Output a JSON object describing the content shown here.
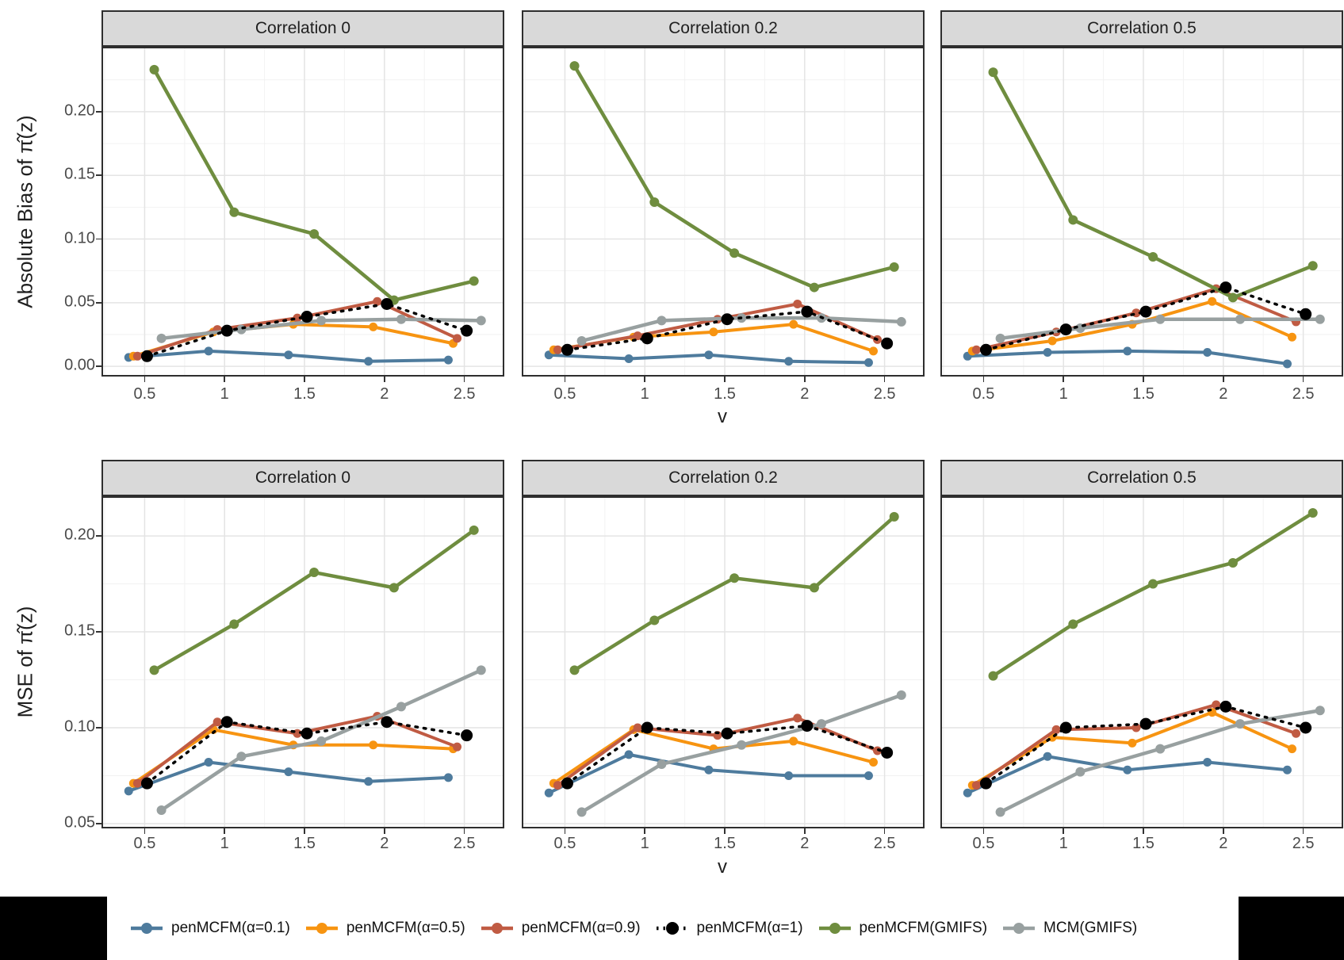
{
  "styles": {
    "background": "#ffffff",
    "strip_fill": "#d9d9d9",
    "panel_border": "#2e2e2e",
    "grid_major": "#e4e4e4",
    "grid_minor": "#f2f2f2",
    "axis_text": "#4a4a4a",
    "tick_mark": "#333333",
    "mask": "#000000"
  },
  "series_meta": [
    {
      "id": "alpha01",
      "label": "penMCFM(α=0.1)",
      "color": "#4e7b9d",
      "x_offset": -0.1,
      "dash": "",
      "line_width": 4,
      "point_r": 5.5
    },
    {
      "id": "alpha05",
      "label": "penMCFM(α=0.5)",
      "color": "#f79411",
      "x_offset": -0.07,
      "dash": "",
      "line_width": 4,
      "point_r": 5.5
    },
    {
      "id": "alpha09",
      "label": "penMCFM(α=0.9)",
      "color": "#c05b43",
      "x_offset": -0.045,
      "dash": "",
      "line_width": 4,
      "point_r": 5.5
    },
    {
      "id": "alpha1",
      "label": "penMCFM(α=1)",
      "color": "#000000",
      "x_offset": 0.015,
      "dash": "2.5 8",
      "line_width": 3.5,
      "point_r": 7.5
    },
    {
      "id": "gmifs",
      "label": "penMCFM(GMIFS)",
      "color": "#6f8d3f",
      "x_offset": 0.06,
      "dash": "",
      "line_width": 4.5,
      "point_r": 6
    },
    {
      "id": "mcm",
      "label": "MCM(GMIFS)",
      "color": "#98a0a0",
      "x_offset": 0.105,
      "dash": "",
      "line_width": 4.5,
      "point_r": 6
    }
  ],
  "chart_data": {
    "type": "line",
    "x": [
      0.5,
      1,
      1.5,
      2,
      2.5
    ],
    "xlabel": "v",
    "x_tick_labels": [
      "0.5",
      "1",
      "1.5",
      "2",
      "2.5"
    ],
    "x_domain": [
      0.23,
      2.75
    ],
    "grid": true,
    "legend_position": "bottom",
    "facet_columns": [
      "Correlation 0",
      "Correlation 0.2",
      "Correlation 0.5"
    ],
    "rows": [
      {
        "ylabel": "Absolute Bias of π̂(z)",
        "ylim": [
          -0.008,
          0.251
        ],
        "y_ticks": [
          0.0,
          0.05,
          0.1,
          0.15,
          0.2
        ],
        "y_tick_labels": [
          "0.00",
          "0.05",
          "0.10",
          "0.15",
          "0.20"
        ],
        "panels": [
          {
            "facet": "Correlation 0",
            "series": {
              "alpha01": [
                0.007,
                0.012,
                0.009,
                0.004,
                0.005
              ],
              "alpha05": [
                0.008,
                0.027,
                0.033,
                0.031,
                0.018
              ],
              "alpha09": [
                0.008,
                0.029,
                0.038,
                0.051,
                0.022
              ],
              "alpha1": [
                0.008,
                0.028,
                0.039,
                0.049,
                0.028
              ],
              "gmifs": [
                0.233,
                0.121,
                0.104,
                0.052,
                0.067
              ],
              "mcm": [
                0.022,
                0.029,
                0.036,
                0.037,
                0.036
              ]
            }
          },
          {
            "facet": "Correlation 0.2",
            "series": {
              "alpha01": [
                0.009,
                0.006,
                0.009,
                0.004,
                0.003
              ],
              "alpha05": [
                0.013,
                0.023,
                0.027,
                0.033,
                0.012
              ],
              "alpha09": [
                0.013,
                0.024,
                0.037,
                0.049,
                0.021
              ],
              "alpha1": [
                0.013,
                0.022,
                0.037,
                0.043,
                0.018
              ],
              "gmifs": [
                0.236,
                0.129,
                0.089,
                0.062,
                0.078
              ],
              "mcm": [
                0.02,
                0.036,
                0.038,
                0.038,
                0.035
              ]
            }
          },
          {
            "facet": "Correlation 0.5",
            "series": {
              "alpha01": [
                0.008,
                0.011,
                0.012,
                0.011,
                0.002
              ],
              "alpha05": [
                0.012,
                0.02,
                0.033,
                0.051,
                0.023
              ],
              "alpha09": [
                0.013,
                0.027,
                0.042,
                0.061,
                0.035
              ],
              "alpha1": [
                0.013,
                0.029,
                0.043,
                0.062,
                0.041
              ],
              "gmifs": [
                0.231,
                0.115,
                0.086,
                0.054,
                0.079
              ],
              "mcm": [
                0.022,
                0.03,
                0.037,
                0.037,
                0.037
              ]
            }
          }
        ]
      },
      {
        "ylabel": "MSE of π̂(z)",
        "ylim": [
          0.0475,
          0.2207
        ],
        "y_ticks": [
          0.05,
          0.1,
          0.15,
          0.2
        ],
        "y_tick_labels": [
          "0.05",
          "0.10",
          "0.15",
          "0.20"
        ],
        "panels": [
          {
            "facet": "Correlation 0",
            "series": {
              "alpha01": [
                0.067,
                0.082,
                0.077,
                0.072,
                0.074
              ],
              "alpha05": [
                0.071,
                0.099,
                0.091,
                0.091,
                0.089
              ],
              "alpha09": [
                0.071,
                0.103,
                0.097,
                0.106,
                0.09
              ],
              "alpha1": [
                0.071,
                0.103,
                0.097,
                0.103,
                0.096
              ],
              "gmifs": [
                0.13,
                0.154,
                0.181,
                0.173,
                0.203
              ],
              "mcm": [
                0.057,
                0.085,
                0.093,
                0.111,
                0.13
              ]
            }
          },
          {
            "facet": "Correlation 0.2",
            "series": {
              "alpha01": [
                0.066,
                0.086,
                0.078,
                0.075,
                0.075
              ],
              "alpha05": [
                0.071,
                0.099,
                0.089,
                0.093,
                0.082
              ],
              "alpha09": [
                0.07,
                0.1,
                0.096,
                0.105,
                0.088
              ],
              "alpha1": [
                0.071,
                0.1,
                0.097,
                0.101,
                0.087
              ],
              "gmifs": [
                0.13,
                0.156,
                0.178,
                0.173,
                0.21
              ],
              "mcm": [
                0.056,
                0.081,
                0.091,
                0.102,
                0.117
              ]
            }
          },
          {
            "facet": "Correlation 0.5",
            "series": {
              "alpha01": [
                0.066,
                0.085,
                0.078,
                0.082,
                0.078
              ],
              "alpha05": [
                0.07,
                0.095,
                0.092,
                0.108,
                0.089
              ],
              "alpha09": [
                0.07,
                0.099,
                0.1,
                0.112,
                0.097
              ],
              "alpha1": [
                0.071,
                0.1,
                0.102,
                0.111,
                0.1
              ],
              "gmifs": [
                0.127,
                0.154,
                0.175,
                0.186,
                0.212
              ],
              "mcm": [
                0.056,
                0.077,
                0.089,
                0.102,
                0.109
              ]
            }
          }
        ]
      }
    ]
  }
}
